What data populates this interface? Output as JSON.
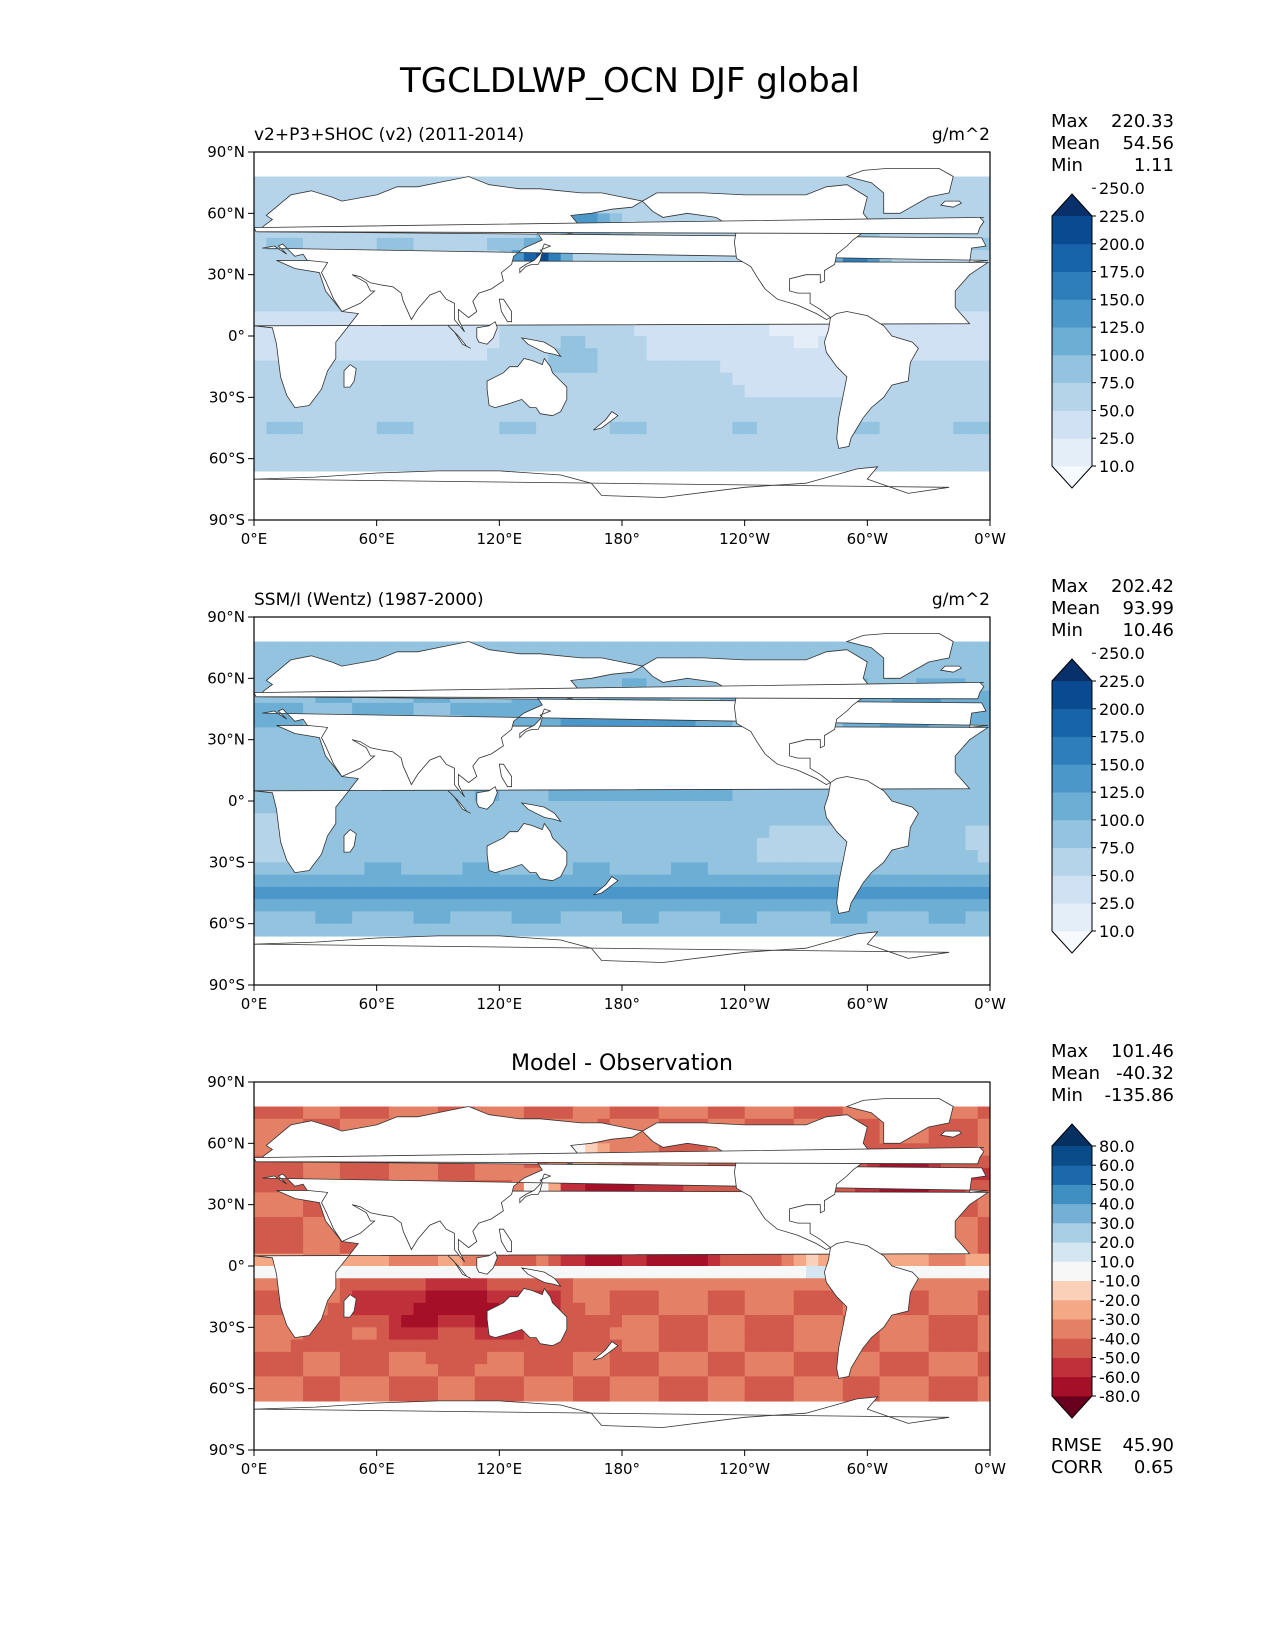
{
  "figure": {
    "title": "TGCLDLWP_OCN DJF global"
  },
  "chart_data": [
    {
      "type": "heatmap",
      "left_title": "v2+P3+SHOC (v2) (2011-2014)",
      "right_title": "g/m^2",
      "center_title": "",
      "x_ticks": [
        "0°E",
        "60°E",
        "120°E",
        "180°",
        "120°W",
        "60°W",
        "0°W"
      ],
      "y_ticks": [
        "90°N",
        "60°N",
        "30°N",
        "0°",
        "30°S",
        "60°S",
        "90°S"
      ],
      "xlim": [
        0,
        360
      ],
      "ylim": [
        -90,
        90
      ],
      "stats": [
        {
          "label": "Max",
          "value": "220.33"
        },
        {
          "label": "Mean",
          "value": "54.56"
        },
        {
          "label": "Min",
          "value": "1.11"
        }
      ],
      "colorbar": {
        "levels": [
          "10.0",
          "25.0",
          "50.0",
          "75.0",
          "100.0",
          "125.0",
          "150.0",
          "175.0",
          "200.0",
          "225.0",
          "250.0"
        ],
        "colors": [
          "#f7fbff",
          "#e3eef9",
          "#cfe1f2",
          "#b5d4e9",
          "#93c3df",
          "#6daed5",
          "#4b97c9",
          "#2f7ebc",
          "#1864aa",
          "#0a4a90",
          "#08306b"
        ],
        "extend": "both"
      },
      "field_style": "model"
    },
    {
      "type": "heatmap",
      "left_title": "SSM/I (Wentz) (1987-2000)",
      "right_title": "g/m^2",
      "center_title": "",
      "x_ticks": [
        "0°E",
        "60°E",
        "120°E",
        "180°",
        "120°W",
        "60°W",
        "0°W"
      ],
      "y_ticks": [
        "90°N",
        "60°N",
        "30°N",
        "0°",
        "30°S",
        "60°S",
        "90°S"
      ],
      "xlim": [
        0,
        360
      ],
      "ylim": [
        -90,
        90
      ],
      "stats": [
        {
          "label": "Max",
          "value": "202.42"
        },
        {
          "label": "Mean",
          "value": "93.99"
        },
        {
          "label": "Min",
          "value": "10.46"
        }
      ],
      "colorbar": {
        "levels": [
          "10.0",
          "25.0",
          "50.0",
          "75.0",
          "100.0",
          "125.0",
          "150.0",
          "175.0",
          "200.0",
          "225.0",
          "250.0"
        ],
        "colors": [
          "#f7fbff",
          "#e3eef9",
          "#cfe1f2",
          "#b5d4e9",
          "#93c3df",
          "#6daed5",
          "#4b97c9",
          "#2f7ebc",
          "#1864aa",
          "#0a4a90",
          "#08306b"
        ],
        "extend": "both"
      },
      "field_style": "obs"
    },
    {
      "type": "heatmap",
      "left_title": "",
      "right_title": "",
      "center_title": "Model - Observation",
      "x_ticks": [
        "0°E",
        "60°E",
        "120°E",
        "180°",
        "120°W",
        "60°W",
        "0°W"
      ],
      "y_ticks": [
        "90°N",
        "60°N",
        "30°N",
        "0°",
        "30°S",
        "60°S",
        "90°S"
      ],
      "xlim": [
        0,
        360
      ],
      "ylim": [
        -90,
        90
      ],
      "stats": [
        {
          "label": "Max",
          "value": "101.46"
        },
        {
          "label": "Mean",
          "value": "-40.32"
        },
        {
          "label": "Min",
          "value": "-135.86"
        }
      ],
      "extra_stats": [
        {
          "label": "RMSE",
          "value": "45.90"
        },
        {
          "label": "CORR",
          "value": "0.65"
        }
      ],
      "colorbar": {
        "levels": [
          "-80.0",
          "-60.0",
          "-50.0",
          "-40.0",
          "-30.0",
          "-20.0",
          "-10.0",
          "10.0",
          "20.0",
          "30.0",
          "40.0",
          "50.0",
          "60.0",
          "80.0"
        ],
        "colors": [
          "#67001f",
          "#a50f27",
          "#c0303a",
          "#d25a4c",
          "#e48066",
          "#f4a886",
          "#fbd0b9",
          "#f7f7f7",
          "#d4e6f1",
          "#a9cfe5",
          "#74b0d5",
          "#3f8fc2",
          "#1d67ab",
          "#0a4b8a",
          "#053061"
        ],
        "extend": "both"
      },
      "field_style": "diff"
    }
  ]
}
